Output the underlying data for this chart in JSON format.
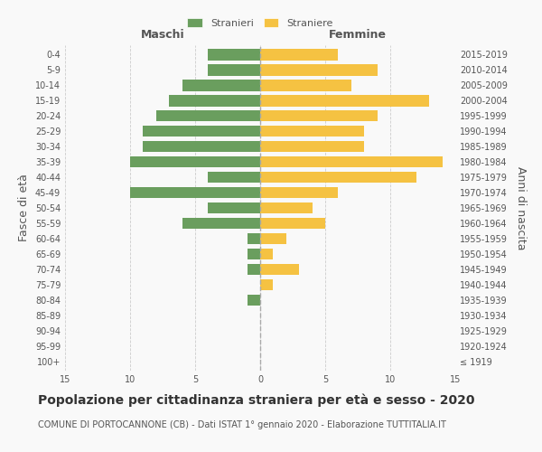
{
  "age_groups": [
    "100+",
    "95-99",
    "90-94",
    "85-89",
    "80-84",
    "75-79",
    "70-74",
    "65-69",
    "60-64",
    "55-59",
    "50-54",
    "45-49",
    "40-44",
    "35-39",
    "30-34",
    "25-29",
    "20-24",
    "15-19",
    "10-14",
    "5-9",
    "0-4"
  ],
  "birth_years": [
    "≤ 1919",
    "1920-1924",
    "1925-1929",
    "1930-1934",
    "1935-1939",
    "1940-1944",
    "1945-1949",
    "1950-1954",
    "1955-1959",
    "1960-1964",
    "1965-1969",
    "1970-1974",
    "1975-1979",
    "1980-1984",
    "1985-1989",
    "1990-1994",
    "1995-1999",
    "2000-2004",
    "2005-2009",
    "2010-2014",
    "2015-2019"
  ],
  "males": [
    0,
    0,
    0,
    0,
    1,
    0,
    1,
    1,
    1,
    6,
    4,
    10,
    4,
    10,
    9,
    9,
    8,
    7,
    6,
    4,
    4
  ],
  "females": [
    0,
    0,
    0,
    0,
    0,
    1,
    3,
    1,
    2,
    5,
    4,
    6,
    12,
    14,
    8,
    8,
    9,
    13,
    7,
    9,
    6
  ],
  "male_color": "#6a9e5e",
  "female_color": "#f5c242",
  "background_color": "#f9f9f9",
  "grid_color": "#cccccc",
  "title": "Popolazione per cittadinanza straniera per età e sesso - 2020",
  "subtitle": "COMUNE DI PORTOCANNONE (CB) - Dati ISTAT 1° gennaio 2020 - Elaborazione TUTTITALIA.IT",
  "xlabel_left": "Maschi",
  "xlabel_right": "Femmine",
  "ylabel_left": "Fasce di età",
  "ylabel_right": "Anni di nascita",
  "legend_male": "Stranieri",
  "legend_female": "Straniere",
  "xlim": 15,
  "title_fontsize": 10,
  "subtitle_fontsize": 7,
  "tick_fontsize": 7,
  "label_fontsize": 9
}
